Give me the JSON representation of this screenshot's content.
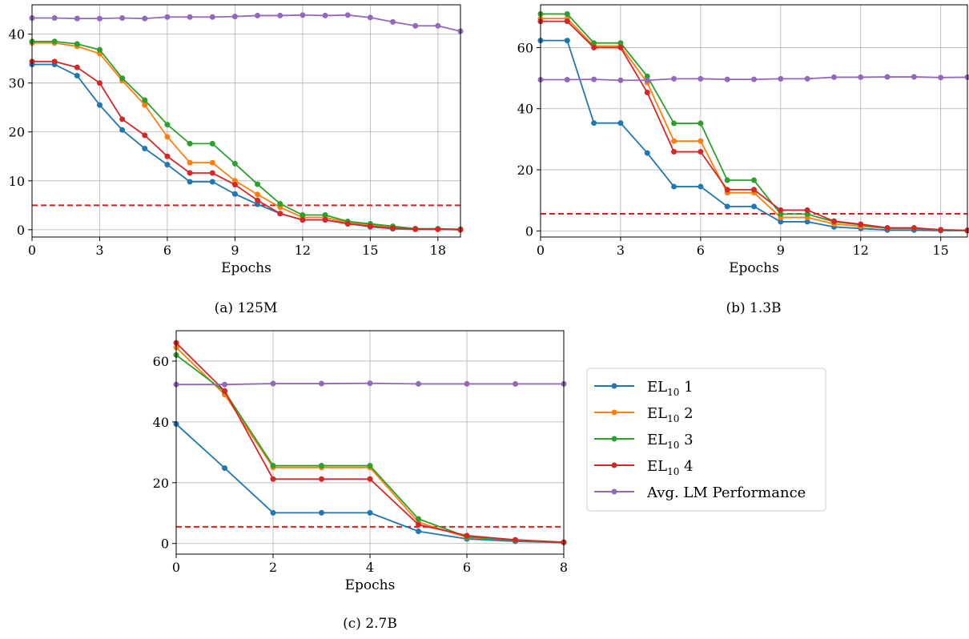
{
  "colors": {
    "blue": "#1f77b4",
    "orange": "#ff7f0e",
    "green": "#2ca02c",
    "red": "#d62728",
    "purple": "#9467bd",
    "threshold": "#e31a1c"
  },
  "legend": {
    "placement": "right of panel (c)",
    "entries": [
      {
        "base": "EL",
        "sub": "10",
        "suffix": " 1",
        "color": "blue"
      },
      {
        "base": "EL",
        "sub": "10",
        "suffix": " 2",
        "color": "orange"
      },
      {
        "base": "EL",
        "sub": "10",
        "suffix": " 3",
        "color": "green"
      },
      {
        "base": "EL",
        "sub": "10",
        "suffix": " 4",
        "color": "red"
      },
      {
        "base": "Avg. LM Performance",
        "sub": "",
        "suffix": "",
        "color": "purple"
      }
    ]
  },
  "chart_data": [
    {
      "type": "line",
      "caption": "(a) 125M",
      "xlabel": "Epochs",
      "ylabel": "",
      "xlim": [
        0,
        19
      ],
      "ylim": [
        -1.5,
        46
      ],
      "xticks": [
        0,
        3,
        6,
        9,
        12,
        15,
        18
      ],
      "yticks": [
        0,
        10,
        20,
        30,
        40
      ],
      "grid": true,
      "threshold": 5,
      "x": [
        0,
        1,
        2,
        3,
        4,
        5,
        6,
        7,
        8,
        9,
        10,
        11,
        12,
        13,
        14,
        15,
        16,
        17,
        18,
        19
      ],
      "series": [
        {
          "name": "EL10 1",
          "color": "blue",
          "values": [
            33.8,
            33.8,
            31.5,
            25.5,
            20.4,
            16.6,
            13.3,
            9.8,
            9.8,
            7.3,
            5.2,
            3.3,
            2.0,
            2.0,
            1.3,
            0.6,
            0.2,
            0.1,
            0.1,
            0.0
          ]
        },
        {
          "name": "EL10 2",
          "color": "orange",
          "values": [
            38.2,
            38.2,
            37.5,
            36.0,
            30.5,
            25.5,
            19.0,
            13.7,
            13.7,
            10.0,
            7.2,
            4.6,
            2.5,
            2.5,
            1.5,
            1.0,
            0.5,
            0.2,
            0.1,
            0.0
          ]
        },
        {
          "name": "EL10 3",
          "color": "green",
          "values": [
            38.5,
            38.5,
            38.0,
            36.8,
            31.0,
            26.5,
            21.5,
            17.6,
            17.6,
            13.5,
            9.3,
            5.3,
            3.0,
            3.0,
            1.7,
            1.2,
            0.7,
            0.2,
            0.2,
            0.1
          ]
        },
        {
          "name": "EL10 4",
          "color": "red",
          "values": [
            34.4,
            34.4,
            33.2,
            30.0,
            22.6,
            19.3,
            15.0,
            11.6,
            11.6,
            9.2,
            6.0,
            3.3,
            2.0,
            2.0,
            1.2,
            0.7,
            0.3,
            0.1,
            0.1,
            0.0
          ]
        },
        {
          "name": "Avg. LM Performance",
          "color": "purple",
          "values": [
            43.3,
            43.3,
            43.2,
            43.2,
            43.3,
            43.2,
            43.5,
            43.5,
            43.5,
            43.6,
            43.8,
            43.8,
            43.9,
            43.8,
            43.9,
            43.4,
            42.5,
            41.7,
            41.7,
            40.6
          ]
        }
      ]
    },
    {
      "type": "line",
      "caption": "(b) 1.3B",
      "xlabel": "Epochs",
      "ylabel": "",
      "xlim": [
        0,
        16
      ],
      "ylim": [
        -2,
        74
      ],
      "xticks": [
        0,
        3,
        6,
        9,
        12,
        15
      ],
      "yticks": [
        0,
        20,
        40,
        60
      ],
      "grid": true,
      "threshold": 5.6,
      "x": [
        0,
        1,
        2,
        3,
        4,
        5,
        6,
        7,
        8,
        9,
        10,
        11,
        12,
        13,
        14,
        15,
        16
      ],
      "series": [
        {
          "name": "EL10 1",
          "color": "blue",
          "values": [
            62.3,
            62.3,
            35.3,
            35.3,
            25.5,
            14.5,
            14.5,
            8.0,
            8.0,
            3.0,
            3.0,
            1.3,
            0.8,
            0.3,
            0.3,
            0.1,
            0.1
          ]
        },
        {
          "name": "EL10 2",
          "color": "orange",
          "values": [
            69.5,
            69.5,
            60.5,
            60.5,
            48.5,
            29.4,
            29.4,
            12.5,
            12.5,
            4.4,
            4.4,
            2.3,
            1.5,
            0.9,
            0.9,
            0.3,
            0.1
          ]
        },
        {
          "name": "EL10 3",
          "color": "green",
          "values": [
            71.0,
            71.0,
            61.5,
            61.5,
            50.6,
            35.2,
            35.2,
            16.6,
            16.6,
            5.5,
            5.5,
            3.0,
            2.0,
            0.9,
            0.9,
            0.3,
            0.1
          ]
        },
        {
          "name": "EL10 4",
          "color": "red",
          "values": [
            68.6,
            68.6,
            60.0,
            60.0,
            45.3,
            25.9,
            25.9,
            13.5,
            13.5,
            6.8,
            6.8,
            3.2,
            2.2,
            1.0,
            1.0,
            0.4,
            0.2
          ]
        },
        {
          "name": "Avg. LM Performance",
          "color": "purple",
          "values": [
            49.5,
            49.5,
            49.6,
            49.3,
            49.3,
            49.8,
            49.8,
            49.6,
            49.6,
            49.8,
            49.8,
            50.3,
            50.3,
            50.4,
            50.4,
            50.2,
            50.3
          ]
        }
      ]
    },
    {
      "type": "line",
      "caption": "(c) 2.7B",
      "xlabel": "Epochs",
      "ylabel": "",
      "xlim": [
        0,
        8
      ],
      "ylim": [
        -3.5,
        70
      ],
      "xticks": [
        0,
        2,
        4,
        6,
        8
      ],
      "yticks": [
        0,
        20,
        40,
        60
      ],
      "grid": true,
      "threshold": 5.5,
      "x": [
        0,
        1,
        2,
        3,
        4,
        5,
        6,
        7,
        8
      ],
      "series": [
        {
          "name": "EL10 1",
          "color": "blue",
          "values": [
            39.3,
            24.8,
            10.1,
            10.1,
            10.1,
            4.0,
            1.5,
            0.7,
            0.3
          ]
        },
        {
          "name": "EL10 2",
          "color": "orange",
          "values": [
            64.5,
            49.0,
            25.0,
            25.0,
            25.0,
            7.0,
            2.0,
            1.0,
            0.4
          ]
        },
        {
          "name": "EL10 3",
          "color": "green",
          "values": [
            62.0,
            50.0,
            25.6,
            25.6,
            25.6,
            8.1,
            2.2,
            1.0,
            0.4
          ]
        },
        {
          "name": "EL10 4",
          "color": "red",
          "values": [
            66.0,
            50.2,
            21.2,
            21.2,
            21.2,
            6.2,
            2.6,
            1.2,
            0.4
          ]
        },
        {
          "name": "Avg. LM Performance",
          "color": "purple",
          "values": [
            52.3,
            52.3,
            52.6,
            52.6,
            52.7,
            52.5,
            52.5,
            52.5,
            52.5
          ]
        }
      ]
    }
  ]
}
